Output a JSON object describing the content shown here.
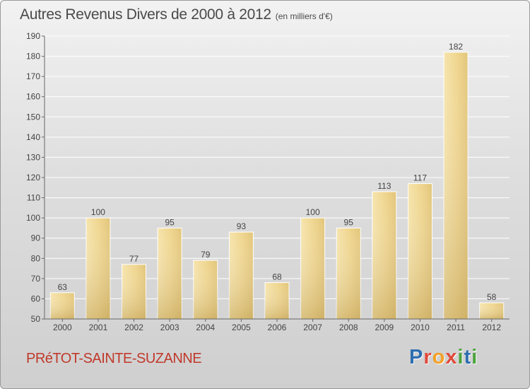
{
  "header": {
    "title": "Autres Revenus Divers de 2000 à 2012",
    "unit": "(en milliers d'€)"
  },
  "footer": {
    "town": "PRéTOT-SAINTE-SUZANNE",
    "brand_letters": [
      "P",
      "r",
      "o",
      "x",
      "i",
      "t",
      "i"
    ]
  },
  "colors": {
    "bar_light": "#f5e0a0",
    "bar_dark": "#c9ac63",
    "grid": "#ffffff",
    "axis": "#666666"
  },
  "chart_data": {
    "type": "bar",
    "title": "Autres Revenus Divers de 2000 à 2012",
    "subtitle": "(en milliers d'€)",
    "categories": [
      "2000",
      "2001",
      "2002",
      "2003",
      "2004",
      "2005",
      "2006",
      "2007",
      "2008",
      "2009",
      "2010",
      "2011",
      "2012"
    ],
    "values": [
      63,
      100,
      77,
      95,
      79,
      93,
      68,
      100,
      95,
      113,
      117,
      182,
      58
    ],
    "ylim": [
      50,
      190
    ],
    "yticks": [
      50,
      60,
      70,
      80,
      90,
      100,
      110,
      120,
      130,
      140,
      150,
      160,
      170,
      180,
      190
    ],
    "grid": true,
    "data_labels": true
  }
}
